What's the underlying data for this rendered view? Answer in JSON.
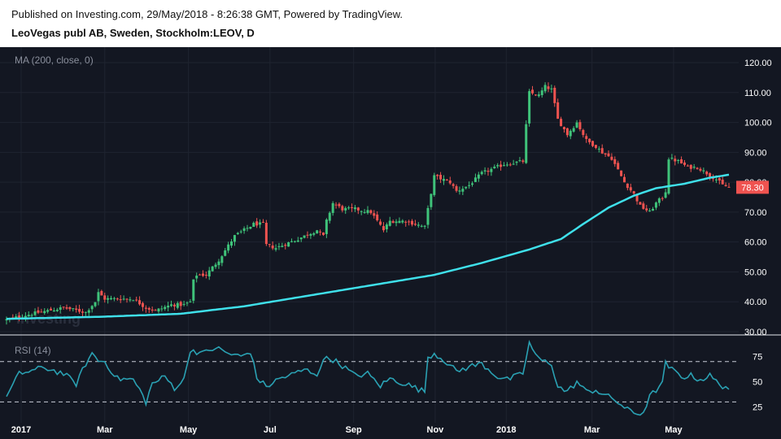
{
  "header": {
    "published": "Published on Investing.com, 29/May/2018 - 8:26:38 GMT, Powered by TradingView.",
    "title": "LeoVegas publ AB, Sweden, Stockholm:LEOV, D"
  },
  "watermark": "Investing",
  "colors": {
    "background": "#131722",
    "up": "#26a69a",
    "up_candle": "#3fc37a",
    "down": "#ef5350",
    "ma": "#3fe0ea",
    "rsi": "#2aa1b3",
    "price_tag": "#ef5350",
    "grid": "#1f2430"
  },
  "chart_data": [
    {
      "type": "candlestick",
      "indicator_label": "MA (200, close, 0)",
      "y_ticks": [
        "120.00",
        "110.00",
        "100.00",
        "90.00",
        "80.00",
        "70.00",
        "60.00",
        "50.00",
        "40.00",
        "30.00"
      ],
      "ylim": [
        30,
        123
      ],
      "x_ticks": [
        "2017",
        "Mar",
        "May",
        "Jul",
        "Sep",
        "Nov",
        "2018",
        "Mar",
        "May"
      ],
      "last_price": "78.30",
      "close_anchors": [
        [
          0,
          34
        ],
        [
          8,
          36
        ],
        [
          18,
          38
        ],
        [
          25,
          36.5
        ],
        [
          28,
          40
        ],
        [
          29,
          43
        ],
        [
          31,
          41
        ],
        [
          40,
          41
        ],
        [
          44,
          38
        ],
        [
          47,
          37
        ],
        [
          52,
          39
        ],
        [
          56,
          39
        ],
        [
          58,
          40
        ],
        [
          59,
          47
        ],
        [
          60,
          49
        ],
        [
          63,
          49
        ],
        [
          67,
          54
        ],
        [
          72,
          62
        ],
        [
          78,
          66
        ],
        [
          81,
          66
        ],
        [
          82,
          59
        ],
        [
          85,
          58
        ],
        [
          92,
          61
        ],
        [
          98,
          64
        ],
        [
          100,
          62
        ],
        [
          101,
          67
        ],
        [
          103,
          73
        ],
        [
          106,
          71
        ],
        [
          110,
          71
        ],
        [
          115,
          70
        ],
        [
          119,
          64
        ],
        [
          121,
          67
        ],
        [
          126,
          67
        ],
        [
          132,
          65
        ],
        [
          133,
          71
        ],
        [
          135,
          82
        ],
        [
          140,
          80
        ],
        [
          142,
          77
        ],
        [
          146,
          79
        ],
        [
          150,
          83
        ],
        [
          157,
          86
        ],
        [
          163,
          87
        ],
        [
          164,
          99
        ],
        [
          165,
          110
        ],
        [
          168,
          109
        ],
        [
          170,
          112
        ],
        [
          172,
          111
        ],
        [
          174,
          101
        ],
        [
          177,
          96
        ],
        [
          180,
          100
        ],
        [
          183,
          94
        ],
        [
          186,
          92
        ],
        [
          188,
          90
        ],
        [
          191,
          88
        ],
        [
          195,
          80
        ],
        [
          198,
          76
        ],
        [
          200,
          72
        ],
        [
          203,
          70
        ],
        [
          205,
          73
        ],
        [
          207,
          75
        ],
        [
          208,
          77
        ],
        [
          209,
          88
        ],
        [
          212,
          87
        ],
        [
          215,
          85
        ],
        [
          218,
          85
        ],
        [
          221,
          83
        ],
        [
          224,
          81
        ],
        [
          226,
          79
        ],
        [
          228,
          78.3
        ]
      ],
      "ma_anchors": [
        [
          0,
          34.3
        ],
        [
          30,
          35
        ],
        [
          55,
          36
        ],
        [
          75,
          38.5
        ],
        [
          95,
          42
        ],
        [
          115,
          45.5
        ],
        [
          135,
          49
        ],
        [
          150,
          53
        ],
        [
          165,
          57.5
        ],
        [
          175,
          61
        ],
        [
          182,
          66
        ],
        [
          190,
          71.5
        ],
        [
          198,
          75.5
        ],
        [
          205,
          78
        ],
        [
          214,
          79.5
        ],
        [
          222,
          81.5
        ],
        [
          228,
          82.5
        ]
      ]
    },
    {
      "type": "line",
      "indicator_label": "RSI (14)",
      "y_ticks": [
        "75",
        "50",
        "25"
      ],
      "ylim": [
        15,
        90
      ],
      "reference_lines": [
        70,
        30
      ],
      "anchors": [
        [
          0,
          35
        ],
        [
          4,
          58
        ],
        [
          12,
          64
        ],
        [
          18,
          58
        ],
        [
          22,
          48
        ],
        [
          25,
          68
        ],
        [
          27,
          78
        ],
        [
          29,
          71
        ],
        [
          31,
          70
        ],
        [
          35,
          53
        ],
        [
          40,
          52
        ],
        [
          42,
          42
        ],
        [
          44,
          30
        ],
        [
          46,
          48
        ],
        [
          50,
          55
        ],
        [
          53,
          44
        ],
        [
          56,
          52
        ],
        [
          58,
          82
        ],
        [
          62,
          78
        ],
        [
          66,
          84
        ],
        [
          70,
          78
        ],
        [
          74,
          75
        ],
        [
          77,
          80
        ],
        [
          79,
          54
        ],
        [
          82,
          45
        ],
        [
          86,
          53
        ],
        [
          90,
          57
        ],
        [
          94,
          62
        ],
        [
          98,
          58
        ],
        [
          101,
          75
        ],
        [
          103,
          72
        ],
        [
          106,
          66
        ],
        [
          110,
          56
        ],
        [
          114,
          58
        ],
        [
          118,
          46
        ],
        [
          121,
          53
        ],
        [
          126,
          48
        ],
        [
          132,
          40
        ],
        [
          133,
          75
        ],
        [
          135,
          78
        ],
        [
          138,
          72
        ],
        [
          142,
          60
        ],
        [
          146,
          65
        ],
        [
          150,
          68
        ],
        [
          155,
          55
        ],
        [
          158,
          52
        ],
        [
          163,
          58
        ],
        [
          164,
          74
        ],
        [
          165,
          88
        ],
        [
          168,
          72
        ],
        [
          172,
          68
        ],
        [
          174,
          45
        ],
        [
          177,
          40
        ],
        [
          180,
          50
        ],
        [
          183,
          40
        ],
        [
          186,
          42
        ],
        [
          188,
          38
        ],
        [
          192,
          32
        ],
        [
          196,
          22
        ],
        [
          199,
          18
        ],
        [
          201,
          20
        ],
        [
          203,
          35
        ],
        [
          205,
          42
        ],
        [
          207,
          48
        ],
        [
          208,
          68
        ],
        [
          210,
          62
        ],
        [
          213,
          55
        ],
        [
          216,
          56
        ],
        [
          219,
          52
        ],
        [
          222,
          56
        ],
        [
          224,
          50
        ],
        [
          226,
          46
        ],
        [
          228,
          44
        ]
      ]
    }
  ]
}
